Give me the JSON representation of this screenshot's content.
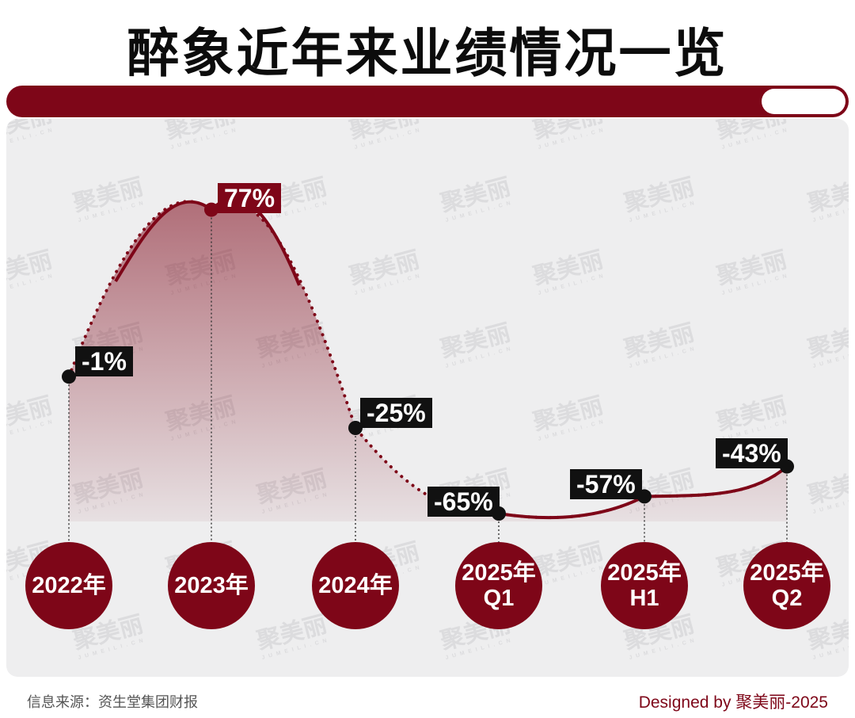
{
  "header": {
    "title": "醉象近年来业绩情况一览"
  },
  "watermark": {
    "text": "聚美丽",
    "subtext": "JUMEILI.CN"
  },
  "chart_data": {
    "type": "line",
    "categories": [
      "2022年",
      "2023年",
      "2024年",
      "2025年\nQ1",
      "2025年\nH1",
      "2025年\nQ2"
    ],
    "values": [
      -1,
      77,
      -25,
      -65,
      -57,
      -43
    ],
    "value_labels": [
      "-1%",
      "77%",
      "-25%",
      "-65%",
      "-57%",
      "-43%"
    ],
    "unit": "%",
    "colors": {
      "line": "#7e0618",
      "area": "#7e0618",
      "point": "#111111",
      "highlight_label": "#7e0618"
    }
  },
  "footer": {
    "source": "信息来源：资生堂集团财报",
    "credit": "Designed by 聚美丽-2025"
  }
}
